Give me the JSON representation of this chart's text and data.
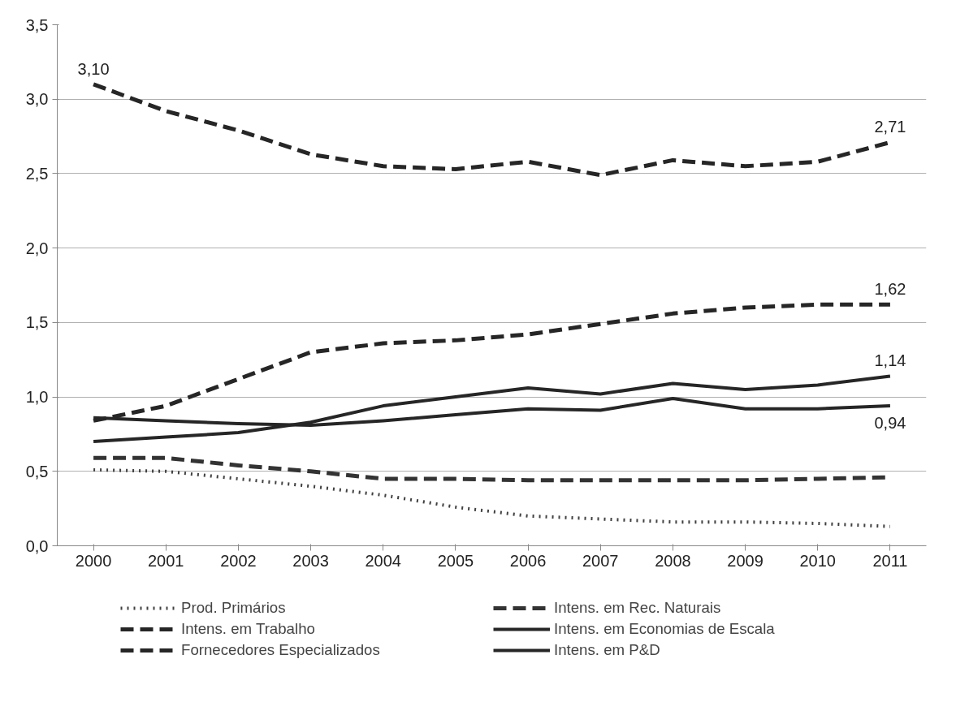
{
  "chart_data": {
    "type": "line",
    "categories": [
      "2000",
      "2001",
      "2002",
      "2003",
      "2004",
      "2005",
      "2006",
      "2007",
      "2008",
      "2009",
      "2010",
      "2011"
    ],
    "ylim": [
      0,
      3.5
    ],
    "yticks": [
      {
        "value": 0,
        "label": "0,0"
      },
      {
        "value": 0.5,
        "label": "0,5"
      },
      {
        "value": 1,
        "label": "1,0"
      },
      {
        "value": 1.5,
        "label": "1,5"
      },
      {
        "value": 2,
        "label": "2,0"
      },
      {
        "value": 2.5,
        "label": "2,5"
      },
      {
        "value": 3,
        "label": "3,0"
      },
      {
        "value": 3.5,
        "label": "3,5"
      }
    ],
    "grid": "y",
    "legend": "bottom",
    "marker": "none",
    "series": [
      {
        "name": "Prod. Primários",
        "color": "#404040",
        "line_style": "dotted",
        "values": [
          0.51,
          0.5,
          0.45,
          0.4,
          0.34,
          0.26,
          0.2,
          0.18,
          0.16,
          0.16,
          0.15,
          0.13
        ]
      },
      {
        "name": "Intens. em Rec. Naturais",
        "color": "#333333",
        "line_style": "dashed",
        "values": [
          0.59,
          0.59,
          0.54,
          0.5,
          0.45,
          0.45,
          0.44,
          0.44,
          0.44,
          0.44,
          0.45,
          0.46
        ]
      },
      {
        "name": "Intens. em Trabalho",
        "color": "#262626",
        "line_style": "dashed",
        "values": [
          3.1,
          2.92,
          2.79,
          2.63,
          2.55,
          2.53,
          2.58,
          2.49,
          2.59,
          2.55,
          2.58,
          2.71
        ],
        "value_labels": [
          "3,10",
          null,
          null,
          null,
          null,
          null,
          null,
          null,
          null,
          null,
          null,
          "2,71"
        ]
      },
      {
        "name": "Intens. em Economias de Escala",
        "color": "#262626",
        "line_style": "solid",
        "values": [
          0.86,
          0.84,
          0.82,
          0.81,
          0.84,
          0.88,
          0.92,
          0.91,
          0.99,
          0.92,
          0.92,
          0.94
        ],
        "value_labels": [
          null,
          null,
          null,
          null,
          null,
          null,
          null,
          null,
          null,
          null,
          null,
          "0,94"
        ]
      },
      {
        "name": "Fornecedores Especializados",
        "color": "#262626",
        "line_style": "dashed",
        "values": [
          0.84,
          0.94,
          1.12,
          1.3,
          1.36,
          1.38,
          1.42,
          1.49,
          1.56,
          1.6,
          1.62,
          1.62
        ],
        "value_labels": [
          null,
          null,
          null,
          null,
          null,
          null,
          null,
          null,
          null,
          null,
          null,
          "1,62"
        ]
      },
      {
        "name": "Intens. em P&D",
        "color": "#262626",
        "line_style": "solid",
        "values": [
          0.7,
          0.73,
          0.76,
          0.83,
          0.94,
          1.0,
          1.06,
          1.02,
          1.09,
          1.05,
          1.08,
          1.14
        ],
        "value_labels": [
          null,
          null,
          null,
          null,
          null,
          null,
          null,
          null,
          null,
          null,
          null,
          "1,14"
        ]
      }
    ]
  }
}
